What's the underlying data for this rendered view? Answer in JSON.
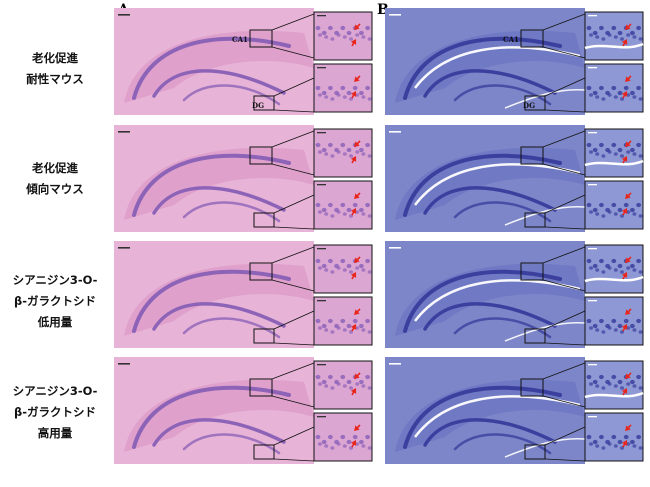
{
  "figure": {
    "column_letters": [
      "A",
      "B"
    ],
    "region_labels": {
      "ca1": "CA1",
      "dg": "DG"
    },
    "scale_bar_main": "100 μm",
    "scale_bar_inset": "50 μm",
    "rows": [
      {
        "label_lines": [
          "老化促進",
          "耐性マウス"
        ]
      },
      {
        "label_lines": [
          "老化促進",
          "傾向マウス"
        ]
      },
      {
        "label_lines": [
          "シアニジン3-O-",
          "β-ガラクトシド",
          "低用量"
        ]
      },
      {
        "label_lines": [
          "シアニジン3-O-",
          "β-ガラクトシド",
          "高用量"
        ]
      }
    ],
    "stains": {
      "he": {
        "bg": "#e7b3d6",
        "tissue": "#d98fc4",
        "cells": "#8d63b8",
        "inset_bg": "#dca6d3"
      },
      "nissl": {
        "bg": "#7d86c9",
        "tissue": "#6570bf",
        "cells": "#3b3f9e",
        "inset_bg": "#8e98d4"
      }
    },
    "arrow_color": "#e8261c"
  }
}
